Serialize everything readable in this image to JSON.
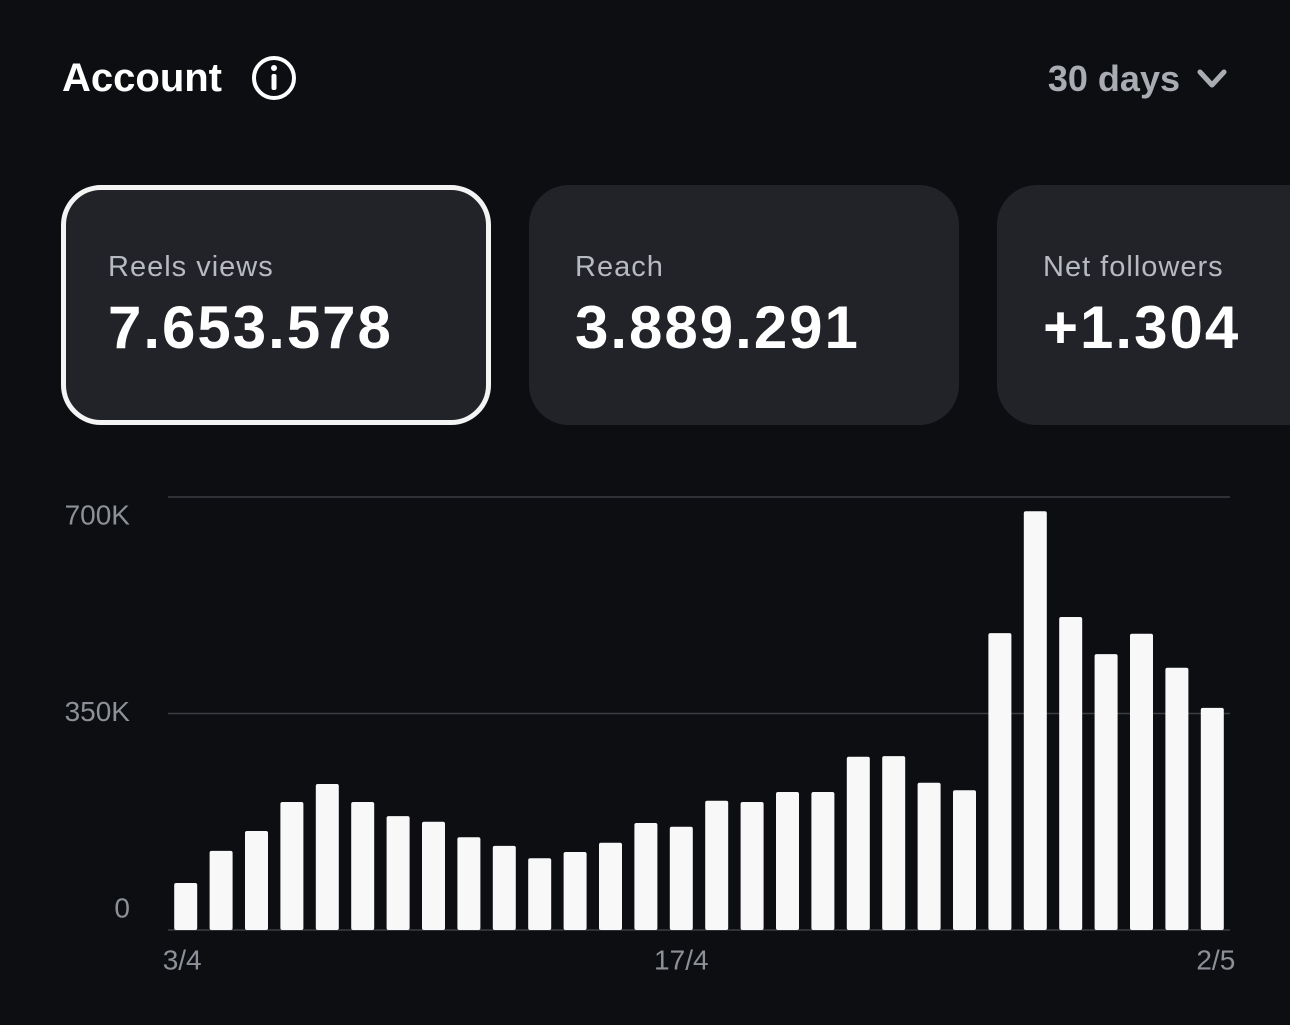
{
  "header": {
    "title": "Account",
    "period": "30 days"
  },
  "cards": [
    {
      "label": "Reels views",
      "value": "7.653.578"
    },
    {
      "label": "Reach",
      "value": "3.889.291"
    },
    {
      "label": "Net followers",
      "value": "+1.304"
    }
  ],
  "chart_data": {
    "type": "bar",
    "color": "#f8f8f8",
    "categories": [
      "3/4",
      null,
      null,
      null,
      null,
      null,
      null,
      null,
      null,
      null,
      null,
      null,
      null,
      null,
      "17/4",
      null,
      null,
      null,
      null,
      null,
      null,
      null,
      null,
      null,
      null,
      null,
      null,
      null,
      null,
      "2/5"
    ],
    "values": [
      76000,
      128000,
      160000,
      207000,
      236000,
      207000,
      184000,
      175000,
      150000,
      136000,
      116000,
      126000,
      141000,
      173000,
      167000,
      209000,
      207000,
      223000,
      223000,
      280000,
      281000,
      238000,
      226000,
      480000,
      677000,
      506000,
      446000,
      479000,
      424000,
      359000
    ],
    "ylim": [
      0,
      700000
    ],
    "yticks": [
      {
        "value": 0,
        "label": "0"
      },
      {
        "value": 350000,
        "label": "350K"
      },
      {
        "value": 700000,
        "label": "700K"
      }
    ],
    "grid": true
  }
}
